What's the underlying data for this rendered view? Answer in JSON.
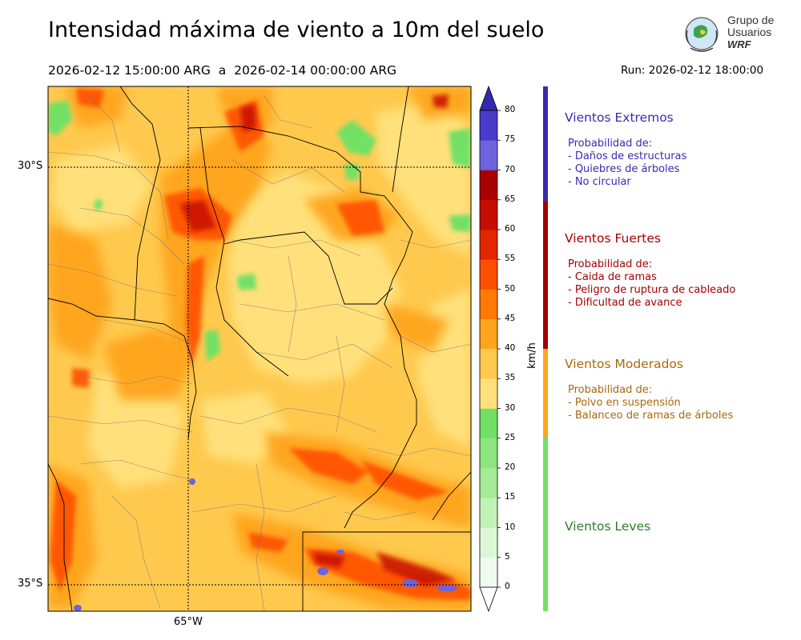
{
  "header": {
    "title": "Intensidad máxima de viento a 10m del suelo",
    "range": "2026-02-12 15:00:00 ARG  a  2026-02-14 00:00:00 ARG",
    "run": "Run: 2026-02-12 18:00:00"
  },
  "logo": {
    "line1": "Grupo de",
    "line2": "Usuarios",
    "line3": "WRF"
  },
  "map": {
    "lat_ticks": [
      "30°S",
      "35°S"
    ],
    "lon_ticks": [
      "65°W"
    ]
  },
  "colorbar": {
    "unit": "km/h",
    "ticks": [
      "0",
      "5",
      "10",
      "15",
      "20",
      "25",
      "30",
      "35",
      "40",
      "45",
      "50",
      "55",
      "60",
      "65",
      "70",
      "75",
      "80"
    ],
    "colors": [
      "#effbef",
      "#dcf7d6",
      "#c2f1b5",
      "#a6eb95",
      "#8ce57e",
      "#72e065",
      "#ffe07a",
      "#ffc94e",
      "#ffa41c",
      "#ff7a00",
      "#ff4f00",
      "#e32600",
      "#c60d00",
      "#a80000",
      "#6d63dc",
      "#4a3cc8",
      "#3328ac"
    ]
  },
  "categories": [
    {
      "name": "Vientos Extremos",
      "color": "#3a2ab0",
      "lines": [
        "Probabilidad de:",
        "- Daños de estructuras",
        "- Quiebres de árboles",
        "- No circular"
      ]
    },
    {
      "name": "Vientos Fuertes",
      "color": "#a50000",
      "lines": [
        "Probabilidad de:",
        "- Caida de ramas",
        "- Peligro de ruptura de cableado",
        "- Dificultad de avance"
      ]
    },
    {
      "name": "Vientos Moderados",
      "color": "#a8680c",
      "lines": [
        "Probabilidad de:",
        "- Polvo en suspensión",
        "- Balanceo de ramas de árboles"
      ]
    },
    {
      "name": "Vientos Leves",
      "color": "#2f7a2a",
      "lines": []
    }
  ]
}
